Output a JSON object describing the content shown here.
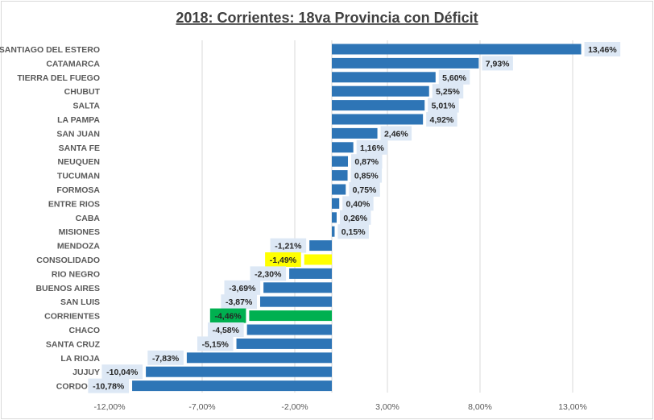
{
  "chart_data": {
    "type": "bar",
    "orientation": "horizontal",
    "title": "2018: Corrientes:  18va Provincia  con  Déficit",
    "xlabel": "",
    "ylabel": "",
    "xlim": [
      -12,
      15
    ],
    "xticks": [
      -12,
      -7,
      -2,
      3,
      8,
      13
    ],
    "xtick_labels": [
      "-12,00%",
      "-7,00%",
      "-2,00%",
      "3,00%",
      "8,00%",
      "13,00%"
    ],
    "grid": "vertical",
    "legend": "none",
    "categories": [
      "SANTIAGO DEL ESTERO",
      "CATAMARCA",
      "TIERRA DEL FUEGO",
      "CHUBUT",
      "SALTA",
      "LA PAMPA",
      "SAN JUAN",
      "SANTA FE",
      "NEUQUEN",
      "TUCUMAN",
      "FORMOSA",
      "ENTRE RIOS",
      "CABA",
      "MISIONES",
      "MENDOZA",
      "CONSOLIDADO",
      "RIO NEGRO",
      "BUENOS AIRES",
      "SAN LUIS",
      "CORRIENTES",
      "CHACO",
      "SANTA CRUZ",
      "LA RIOJA",
      "JUJUY",
      "CORDOBA"
    ],
    "values": [
      13.46,
      7.93,
      5.6,
      5.25,
      5.01,
      4.92,
      2.46,
      1.16,
      0.87,
      0.85,
      0.75,
      0.4,
      0.26,
      0.15,
      -1.21,
      -1.49,
      -2.3,
      -3.69,
      -3.87,
      -4.46,
      -4.58,
      -5.15,
      -7.83,
      -10.04,
      -10.78
    ],
    "value_labels": [
      "13,46%",
      "7,93%",
      "5,60%",
      "5,25%",
      "5,01%",
      "4,92%",
      "2,46%",
      "1,16%",
      "0,87%",
      "0,85%",
      "0,75%",
      "0,40%",
      "0,26%",
      "0,15%",
      "-1,21%",
      "-1,49%",
      "-2,30%",
      "-3,69%",
      "-3,87%",
      "-4,46%",
      "-4,58%",
      "-5,15%",
      "-7,83%",
      "-10,04%",
      "-10,78%"
    ],
    "colors": {
      "default": "#2e75b6",
      "highlight": {
        "CONSOLIDADO": "#ffff00",
        "CORRIENTES": "#00b050"
      },
      "label_bg_default": "#dde8f5",
      "label_bg_highlight": {
        "CONSOLIDADO": "#ffff00",
        "CORRIENTES": "#00b050"
      },
      "gridline": "#d9d9d9"
    }
  }
}
